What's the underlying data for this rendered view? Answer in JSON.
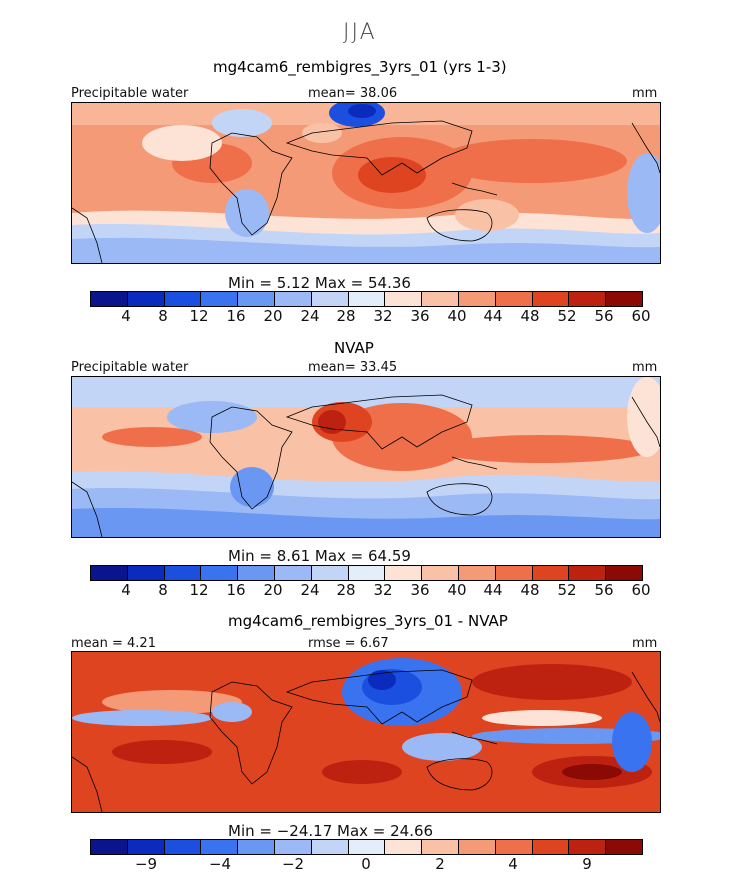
{
  "figure": {
    "title": "JJA"
  },
  "chart_data": [
    {
      "type": "heatmap",
      "title": "mg4cam6_rembigres_3yrs_01 (yrs 1-3)",
      "left_label": "Precipitable water",
      "center_label": "mean=  38.06",
      "units": "mm",
      "min_max_text": "Min =    5.12  Max =   54.36",
      "colorbar_ticks": [
        "4",
        "8",
        "12",
        "16",
        "20",
        "24",
        "28",
        "32",
        "36",
        "40",
        "44",
        "48",
        "52",
        "56",
        "60"
      ],
      "colors": [
        "#0a148c",
        "#0b2bbf",
        "#1a4fe0",
        "#3a73ef",
        "#6a97f2",
        "#9ab9f5",
        "#c2d5f6",
        "#e4eefb",
        "#fde3d5",
        "#f9c1a5",
        "#f59a76",
        "#ee6f4a",
        "#df4421",
        "#bd2210",
        "#8c0a06"
      ]
    },
    {
      "type": "heatmap",
      "title": "NVAP",
      "left_label": "Precipitable water",
      "center_label": "mean=  33.45",
      "units": "mm",
      "min_max_text": "Min =    8.61  Max =   64.59",
      "colorbar_ticks": [
        "4",
        "8",
        "12",
        "16",
        "20",
        "24",
        "28",
        "32",
        "36",
        "40",
        "44",
        "48",
        "52",
        "56",
        "60"
      ],
      "colors": [
        "#0a148c",
        "#0b2bbf",
        "#1a4fe0",
        "#3a73ef",
        "#6a97f2",
        "#9ab9f5",
        "#c2d5f6",
        "#e4eefb",
        "#fde3d5",
        "#f9c1a5",
        "#f59a76",
        "#ee6f4a",
        "#df4421",
        "#bd2210",
        "#8c0a06"
      ]
    },
    {
      "type": "heatmap",
      "title": "mg4cam6_rembigres_3yrs_01 - NVAP",
      "left_label": "mean =    4.21",
      "center_label": "rmse =    6.67",
      "units": "mm",
      "min_max_text": "Min = −24.17  Max =   24.66",
      "colorbar_ticks": [
        "−9",
        "−4",
        "−2",
        "0",
        "2",
        "4",
        "9"
      ],
      "colors": [
        "#0a148c",
        "#0b2bbf",
        "#1a4fe0",
        "#3a73ef",
        "#6a97f2",
        "#9ab9f5",
        "#c2d5f6",
        "#e4eefb",
        "#fde3d5",
        "#f9c1a5",
        "#f59a76",
        "#ee6f4a",
        "#df4421",
        "#bd2210",
        "#8c0a06"
      ]
    }
  ]
}
